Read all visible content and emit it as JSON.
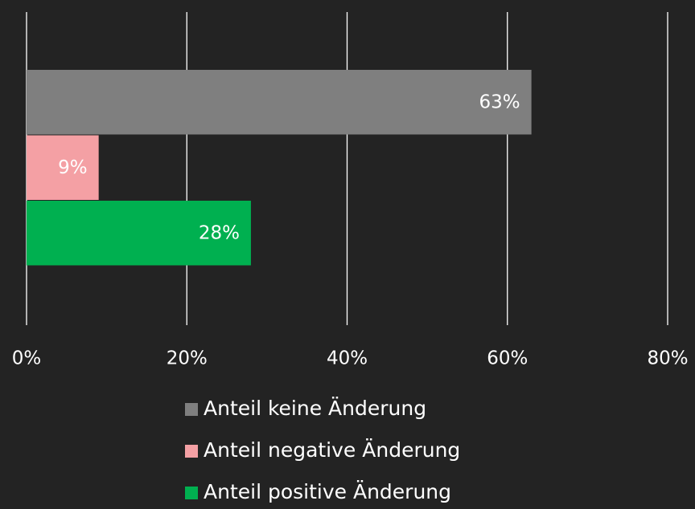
{
  "chart_data": {
    "type": "bar",
    "orientation": "horizontal",
    "series": [
      {
        "name": "Anteil keine Änderung",
        "color": "#7f7f7f",
        "values": [
          63
        ],
        "value_labels": [
          "63%"
        ]
      },
      {
        "name": "Anteil negative Änderung",
        "color": "#f4a0a4",
        "values": [
          9
        ],
        "value_labels": [
          "9%"
        ]
      },
      {
        "name": "Anteil positive Änderung",
        "color": "#00b050",
        "values": [
          28
        ],
        "value_labels": [
          "28%"
        ]
      }
    ],
    "xlim": [
      0,
      80
    ],
    "xticks": [
      {
        "value": 0,
        "label": "0%"
      },
      {
        "value": 20,
        "label": "20%"
      },
      {
        "value": 40,
        "label": "40%"
      },
      {
        "value": 60,
        "label": "60%"
      },
      {
        "value": 80,
        "label": "80%"
      }
    ],
    "grid": true,
    "legend": "bottom"
  }
}
